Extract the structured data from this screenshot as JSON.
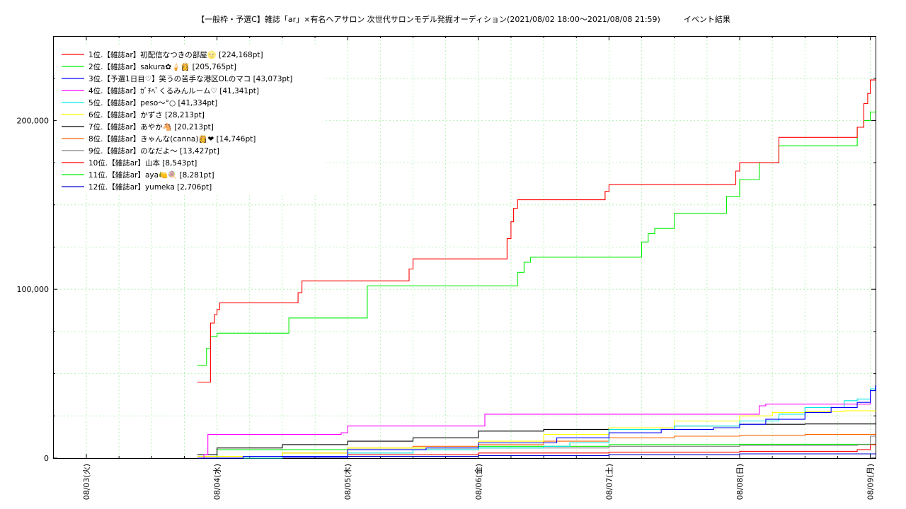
{
  "chart_data": {
    "type": "line",
    "title": "【一般枠・予選C】雑誌「ar」×有名ヘアサロン 次世代サロンモデル発掘オーディション(2021/08/02 18:00〜2021/08/08 21:59)　　　イベント結果",
    "xlabel": "",
    "ylabel": "",
    "x_tick_labels": [
      "08/03(火)",
      "08/04(水)",
      "08/05(木)",
      "08/06(金)",
      "08/07(土)",
      "08/08(日)",
      "08/09(月)"
    ],
    "x_unit": "days after 08/03 00:00",
    "xlim": [
      0,
      6.05
    ],
    "ylim": [
      0,
      250000
    ],
    "y_ticks": [
      0,
      100000,
      200000
    ],
    "y_tick_labels": [
      "0",
      "100,000",
      "200,000"
    ],
    "grid": true,
    "legend_position": "top-left",
    "series": [
      {
        "name": "1位.【雑誌ar】初配信なつきの部屋🌝 [224,168pt]",
        "color": "#ff0000",
        "x": [
          0.85,
          0.94,
          0.95,
          0.98,
          1.0,
          1.02,
          1.05,
          1.6,
          1.62,
          1.65,
          2.45,
          2.47,
          2.5,
          2.55,
          3.2,
          3.22,
          3.25,
          3.27,
          3.3,
          3.5,
          3.95,
          3.97,
          4.0,
          4.1,
          4.95,
          4.97,
          5.0,
          5.05,
          5.12,
          5.28,
          5.3,
          5.9,
          5.92,
          5.95,
          5.98,
          6.0,
          6.04
        ],
        "y": [
          45000,
          45000,
          80000,
          85000,
          88000,
          92000,
          92000,
          92000,
          98000,
          105000,
          105000,
          112000,
          118000,
          118000,
          118000,
          130000,
          140000,
          148000,
          153000,
          153000,
          153000,
          158000,
          162000,
          162000,
          162000,
          170000,
          175000,
          175000,
          175000,
          175000,
          190000,
          196000,
          196000,
          210000,
          216000,
          224000,
          224168
        ]
      },
      {
        "name": "2位.【雑誌ar】sakura✿🍦👸 [205,765pt]",
        "color": "#00ee00",
        "x": [
          0.85,
          0.9,
          0.92,
          0.95,
          1.0,
          1.5,
          1.55,
          2.1,
          2.15,
          3.25,
          3.3,
          3.35,
          3.4,
          3.45,
          4.2,
          4.25,
          4.3,
          4.35,
          4.5,
          4.85,
          4.9,
          5.0,
          5.05,
          5.15,
          5.2,
          5.3,
          5.85,
          5.9,
          5.95,
          6.0,
          6.04
        ],
        "y": [
          55000,
          55000,
          65000,
          72000,
          74000,
          74000,
          83000,
          83000,
          102000,
          102000,
          110000,
          116000,
          119000,
          119000,
          119000,
          128000,
          133000,
          136000,
          145000,
          145000,
          155000,
          165000,
          165000,
          175000,
          175000,
          185000,
          185000,
          196000,
          200000,
          205000,
          205765
        ]
      },
      {
        "name": "3位.【予選1日目♡】笑うの苦手な港区OLのマコ [43,073pt]",
        "color": "#0000ff",
        "x": [
          0.85,
          1.2,
          2.0,
          2.6,
          3.0,
          3.6,
          4.0,
          4.4,
          4.8,
          5.0,
          5.2,
          5.5,
          5.7,
          5.9,
          6.0,
          6.04
        ],
        "y": [
          0,
          1000,
          5000,
          6000,
          9000,
          12000,
          15000,
          17000,
          18000,
          20000,
          23000,
          27000,
          30000,
          33000,
          40000,
          43073
        ]
      },
      {
        "name": "4位.【雑誌ar】ｶﾞﾁﾍﾞくるみんルーム♡ [41,341pt]",
        "color": "#ff00ff",
        "x": [
          0.85,
          0.9,
          0.93,
          1.5,
          1.95,
          2.0,
          3.0,
          3.05,
          4.0,
          5.0,
          5.15,
          5.2,
          5.9,
          6.0,
          6.04
        ],
        "y": [
          0,
          2000,
          14000,
          14000,
          15000,
          19000,
          19000,
          26000,
          26000,
          26000,
          31000,
          32000,
          32000,
          40000,
          41341
        ]
      },
      {
        "name": "5位.【雑誌ar】peso〜°○ [41,334pt]",
        "color": "#00e5e5",
        "x": [
          0.85,
          1.5,
          2.0,
          2.5,
          3.0,
          3.5,
          3.7,
          4.0,
          4.5,
          5.0,
          5.3,
          5.5,
          5.8,
          5.9,
          6.0,
          6.04
        ],
        "y": [
          0,
          1000,
          3000,
          5000,
          6000,
          7000,
          9000,
          17000,
          19000,
          22000,
          26000,
          30000,
          34000,
          35000,
          41000,
          41334
        ]
      },
      {
        "name": "6位.【雑誌ar】かずさ [28,213pt]",
        "color": "#ffff00",
        "x": [
          0.85,
          1.5,
          2.0,
          3.0,
          3.5,
          4.0,
          4.5,
          5.0,
          5.25,
          5.5,
          5.8,
          6.04
        ],
        "y": [
          1000,
          3000,
          6000,
          10000,
          14000,
          18000,
          22000,
          25000,
          27000,
          27500,
          28000,
          28213
        ]
      },
      {
        "name": "7位.【雑誌ar】あやか🐴 [20,213pt]",
        "color": "#000000",
        "x": [
          0.85,
          1.0,
          1.5,
          2.0,
          2.5,
          3.0,
          3.5,
          4.0,
          4.5,
          5.0,
          5.5,
          6.04
        ],
        "y": [
          2000,
          6000,
          8000,
          10000,
          12000,
          16000,
          17000,
          18000,
          19000,
          20000,
          20213,
          20213
        ]
      },
      {
        "name": "8位.【雑誌ar】きゃんな(canna)👸❤ [14,746pt]",
        "color": "#ff6600",
        "x": [
          0.85,
          1.5,
          2.0,
          2.5,
          3.0,
          3.5,
          4.0,
          4.5,
          5.0,
          5.5,
          6.04
        ],
        "y": [
          1000,
          3000,
          6000,
          7000,
          8000,
          10000,
          12000,
          13000,
          13500,
          14000,
          14746
        ]
      },
      {
        "name": "9位.【雑誌ar】のなだよ〜 [13,427pt]",
        "color": "#808080",
        "x": [
          0.85,
          1.5,
          2.0,
          3.0,
          4.0,
          5.0,
          5.9,
          6.0,
          6.04
        ],
        "y": [
          1000,
          3000,
          5000,
          6000,
          7000,
          7500,
          8000,
          13000,
          13427
        ]
      },
      {
        "name": "10位.【雑誌ar】山本 [8,543pt]",
        "color": "#ff0000",
        "x": [
          0.85,
          1.5,
          2.0,
          3.0,
          4.0,
          5.0,
          5.8,
          5.9,
          6.0,
          6.04
        ],
        "y": [
          0,
          1000,
          2000,
          3000,
          3500,
          4000,
          4000,
          5000,
          8000,
          8543
        ]
      },
      {
        "name": "11位.【雑誌ar】aya🍋🍭 [8,281pt]",
        "color": "#00ee00",
        "x": [
          0.85,
          1.0,
          2.0,
          3.0,
          4.0,
          5.0,
          6.04
        ],
        "y": [
          0,
          5000,
          6000,
          7000,
          8000,
          8200,
          8281
        ]
      },
      {
        "name": "12位.【雑誌ar】yumeka [2,706pt]",
        "color": "#0000cc",
        "x": [
          0.85,
          1.5,
          2.0,
          3.0,
          4.0,
          5.0,
          6.04
        ],
        "y": [
          0,
          500,
          1000,
          1500,
          2000,
          2500,
          2706
        ]
      }
    ]
  }
}
